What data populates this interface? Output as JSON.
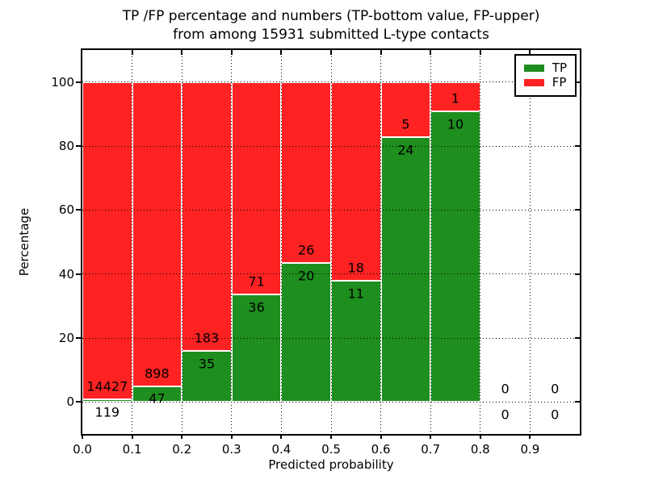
{
  "chart_data": {
    "type": "bar",
    "stacked": true,
    "title_line1": "TP /FP percentage and numbers (TP-bottom value, FP-upper)",
    "title_line2": "from among 15931 submitted L-type contacts",
    "xlabel": "Predicted probability",
    "ylabel": "Percentage",
    "total_submitted": 15931,
    "xlim": [
      0.0,
      1.0
    ],
    "ylim": [
      -10,
      110
    ],
    "xticks": [
      "0.0",
      "0.1",
      "0.2",
      "0.3",
      "0.4",
      "0.5",
      "0.6",
      "0.7",
      "0.8",
      "0.9"
    ],
    "yticks": [
      0,
      20,
      40,
      60,
      80,
      100
    ],
    "grid": true,
    "annotation_note": "each bin labeled with FP count above boundary and TP count below",
    "bins": [
      {
        "range": [
          0.0,
          0.1
        ],
        "tp": 119,
        "fp": 14427
      },
      {
        "range": [
          0.1,
          0.2
        ],
        "tp": 47,
        "fp": 898
      },
      {
        "range": [
          0.2,
          0.3
        ],
        "tp": 35,
        "fp": 183
      },
      {
        "range": [
          0.3,
          0.4
        ],
        "tp": 36,
        "fp": 71
      },
      {
        "range": [
          0.4,
          0.5
        ],
        "tp": 20,
        "fp": 26
      },
      {
        "range": [
          0.5,
          0.6
        ],
        "tp": 11,
        "fp": 18
      },
      {
        "range": [
          0.6,
          0.7
        ],
        "tp": 24,
        "fp": 5
      },
      {
        "range": [
          0.7,
          0.8
        ],
        "tp": 10,
        "fp": 1
      },
      {
        "range": [
          0.8,
          0.9
        ],
        "tp": 0,
        "fp": 0
      },
      {
        "range": [
          0.9,
          1.0
        ],
        "tp": 0,
        "fp": 0
      }
    ],
    "legend": {
      "position": "upper right",
      "entries": [
        {
          "label": "TP",
          "color": "#1e8e1e"
        },
        {
          "label": "FP",
          "color": "#ff2222"
        }
      ]
    }
  },
  "colors": {
    "tp": "#1e8e1e",
    "fp": "#ff2222",
    "grid": "#000000",
    "background": "#ffffff"
  }
}
